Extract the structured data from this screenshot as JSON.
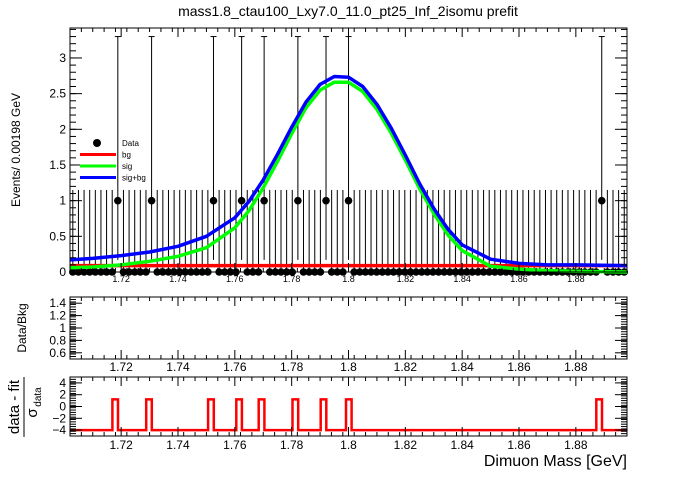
{
  "chart_data": [
    {
      "type": "scatter",
      "title": "mass1.8_ctau100_Lxy7.0_11.0_pt25_Inf_2isomu   prefit",
      "ylabel": "Events/ 0.00198 GeV",
      "xlim": [
        1.702,
        1.898
      ],
      "ylim": [
        0,
        3.42
      ],
      "xticks": [
        1.72,
        1.74,
        1.76,
        1.78,
        1.8,
        1.82,
        1.84,
        1.86,
        1.88
      ],
      "xtick_labels": [
        "1.72",
        "1.74",
        "1.76",
        "1.78",
        "1.8",
        "1.82",
        "1.84",
        "1.86",
        "1.88"
      ],
      "yticks": [
        0,
        0.5,
        1,
        1.5,
        2,
        2.5,
        3
      ],
      "ytick_labels": [
        "0",
        "0.5",
        "1",
        "1.5",
        "2",
        "2.5",
        "3"
      ],
      "data_points": {
        "name": "Data",
        "nbins": 99,
        "x_min": 1.702,
        "bin_width": 0.00198,
        "nonzero": [
          {
            "x": 1.7179,
            "y": 1,
            "err_low": 0.83,
            "err_high": 2.3
          },
          {
            "x": 1.7298,
            "y": 1,
            "err_low": 0.83,
            "err_high": 2.3
          },
          {
            "x": 1.7516,
            "y": 1,
            "err_low": 0.83,
            "err_high": 2.3
          },
          {
            "x": 1.7615,
            "y": 1,
            "err_low": 0.83,
            "err_high": 2.3
          },
          {
            "x": 1.7694,
            "y": 1,
            "err_low": 0.83,
            "err_high": 2.3
          },
          {
            "x": 1.7813,
            "y": 1,
            "err_low": 0.83,
            "err_high": 2.3
          },
          {
            "x": 1.7912,
            "y": 1,
            "err_low": 0.83,
            "err_high": 2.3
          },
          {
            "x": 1.8001,
            "y": 1,
            "err_low": 0.83,
            "err_high": 2.3
          },
          {
            "x": 1.8882,
            "y": 1,
            "err_low": 0.83,
            "err_high": 2.3
          }
        ],
        "zero_err_high": 1.15
      },
      "series": [
        {
          "name": "bg",
          "color": "#ff0000",
          "x": [
            1.702,
            1.898
          ],
          "y": [
            0.09,
            0.09
          ]
        },
        {
          "name": "sig",
          "color": "#00ff00",
          "x": [
            1.702,
            1.71,
            1.72,
            1.73,
            1.74,
            1.75,
            1.76,
            1.765,
            1.77,
            1.775,
            1.78,
            1.785,
            1.79,
            1.795,
            1.8,
            1.805,
            1.81,
            1.815,
            1.82,
            1.825,
            1.83,
            1.835,
            1.84,
            1.85,
            1.86,
            1.87,
            1.88,
            1.898
          ],
          "y": [
            0.06,
            0.07,
            0.1,
            0.15,
            0.22,
            0.34,
            0.62,
            0.86,
            1.18,
            1.55,
            1.94,
            2.3,
            2.55,
            2.66,
            2.66,
            2.53,
            2.28,
            1.95,
            1.57,
            1.17,
            0.82,
            0.52,
            0.3,
            0.08,
            0.04,
            0.02,
            0.01,
            0.0
          ]
        },
        {
          "name": "sig+bg",
          "color": "#0000ff",
          "x": [
            1.702,
            1.71,
            1.72,
            1.73,
            1.74,
            1.75,
            1.76,
            1.765,
            1.77,
            1.775,
            1.78,
            1.785,
            1.79,
            1.795,
            1.8,
            1.805,
            1.81,
            1.815,
            1.82,
            1.825,
            1.83,
            1.835,
            1.84,
            1.85,
            1.86,
            1.87,
            1.88,
            1.898
          ],
          "y": [
            0.17,
            0.19,
            0.23,
            0.28,
            0.36,
            0.5,
            0.76,
            0.99,
            1.29,
            1.65,
            2.03,
            2.38,
            2.63,
            2.74,
            2.73,
            2.6,
            2.35,
            2.02,
            1.64,
            1.24,
            0.89,
            0.6,
            0.38,
            0.18,
            0.12,
            0.1,
            0.1,
            0.09
          ]
        }
      ],
      "legend": {
        "placement": "left",
        "entries": [
          {
            "label": "Data",
            "kind": "marker",
            "color": "#000000"
          },
          {
            "label": "bg",
            "kind": "line",
            "color": "#ff0000"
          },
          {
            "label": "sig",
            "kind": "line",
            "color": "#00ff00"
          },
          {
            "label": "sig+bg",
            "kind": "line",
            "color": "#0000ff"
          }
        ]
      }
    },
    {
      "type": "scatter",
      "ylabel": "Data/Bkg",
      "xlim": [
        1.702,
        1.898
      ],
      "ylim": [
        0.5,
        1.5
      ],
      "xticks": [
        1.72,
        1.74,
        1.76,
        1.78,
        1.8,
        1.82,
        1.84,
        1.86,
        1.88
      ],
      "xtick_labels": [
        "1.72",
        "1.74",
        "1.76",
        "1.78",
        "1.8",
        "1.82",
        "1.84",
        "1.86",
        "1.88"
      ],
      "yticks": [
        0.6,
        0.8,
        1,
        1.2,
        1.4
      ],
      "ytick_labels": [
        "0.6",
        "0.8",
        "1",
        "1.2",
        "1.4"
      ],
      "values": []
    },
    {
      "type": "line",
      "ylabel_top": "data - fit",
      "ylabel_bottom": "σ",
      "ylabel_sub": "data",
      "xlabel": "Dimuon Mass [GeV]",
      "xlim": [
        1.702,
        1.898
      ],
      "ylim": [
        -5,
        5
      ],
      "xticks": [
        1.72,
        1.74,
        1.76,
        1.78,
        1.8,
        1.82,
        1.84,
        1.86,
        1.88
      ],
      "xtick_labels": [
        "1.72",
        "1.74",
        "1.76",
        "1.78",
        "1.8",
        "1.82",
        "1.84",
        "1.86",
        "1.88"
      ],
      "yticks": [
        -4,
        -2,
        0,
        2,
        4
      ],
      "ytick_labels": [
        "−4",
        "−2",
        "0",
        "2",
        "4"
      ],
      "baseline": -4,
      "spike_value": 1.2,
      "spike_x": [
        1.7179,
        1.7298,
        1.7516,
        1.7615,
        1.7694,
        1.7813,
        1.7912,
        1.8001,
        1.8882
      ],
      "spike_half_width": 0.00099,
      "color": "#ff0000"
    }
  ]
}
